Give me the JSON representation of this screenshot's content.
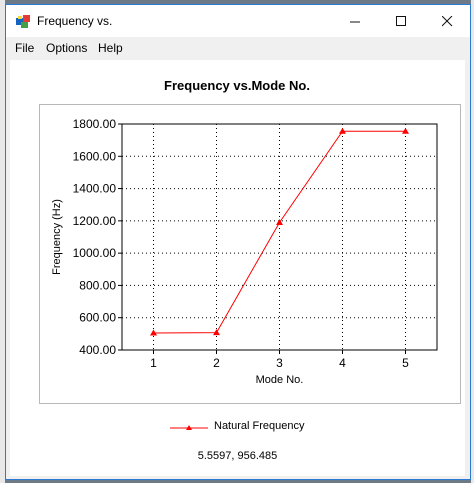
{
  "window": {
    "title": "Frequency vs."
  },
  "menu": {
    "items": [
      "File",
      "Options",
      "Help"
    ]
  },
  "chart_data": {
    "type": "line",
    "title": "Frequency vs.Mode No.",
    "xlabel": "Mode No.",
    "ylabel": "Frequency (Hz)",
    "x": [
      1,
      2,
      3,
      4,
      5
    ],
    "x_ticks": [
      "1",
      "2",
      "3",
      "4",
      "5"
    ],
    "ylim": [
      400,
      1800
    ],
    "y_ticks": [
      "400.00",
      "600.00",
      "800.00",
      "1000.00",
      "1200.00",
      "1400.00",
      "1600.00",
      "1800.00"
    ],
    "series": [
      {
        "name": "Natural Frequency",
        "values": [
          505,
          508,
          1190,
          1755,
          1755
        ],
        "color": "#ff0000",
        "marker": "triangle"
      }
    ],
    "grid": "dotted",
    "legend": "bottom-center"
  },
  "status": {
    "coordinate_readout": "5.5597, 956.485"
  }
}
